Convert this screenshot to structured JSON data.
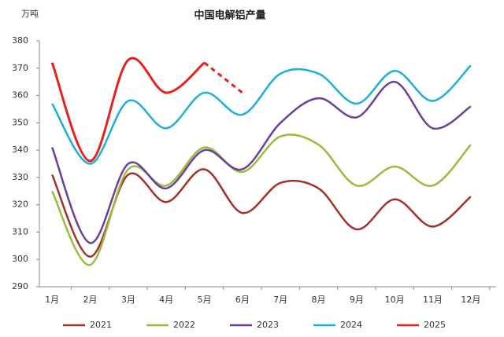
{
  "chart_data": {
    "type": "line",
    "title": "中国电解铝产量",
    "y_label": "万吨",
    "categories": [
      "1月",
      "2月",
      "3月",
      "4月",
      "5月",
      "6月",
      "7月",
      "8月",
      "9月",
      "10月",
      "11月",
      "12月"
    ],
    "ylim": [
      290,
      380
    ],
    "yticks": [
      290,
      300,
      310,
      320,
      330,
      340,
      350,
      360,
      370,
      380
    ],
    "smooth": true,
    "legend": "bottom",
    "series": [
      {
        "name": "2021",
        "color": "#a3302b",
        "values": [
          331,
          301,
          331,
          321,
          333,
          317,
          328,
          326,
          311,
          322,
          312,
          323
        ]
      },
      {
        "name": "2022",
        "color": "#9bbb3b",
        "values": [
          325,
          298,
          333,
          327,
          341,
          332,
          345,
          342,
          327,
          334,
          327,
          342
        ]
      },
      {
        "name": "2023",
        "color": "#6a3f9a",
        "values": [
          341,
          306,
          335,
          326,
          340,
          333,
          350,
          359,
          352,
          365,
          348,
          356
        ]
      },
      {
        "name": "2024",
        "color": "#1ab0d8",
        "values": [
          357,
          335,
          358,
          348,
          361,
          353,
          368,
          368,
          357,
          369,
          358,
          371
        ]
      },
      {
        "name": "2025",
        "color": "#e8201f",
        "values": [
          372,
          336,
          373,
          361,
          372,
          361,
          null,
          null,
          null,
          null,
          null,
          null
        ],
        "dashed_from": 4
      }
    ]
  }
}
